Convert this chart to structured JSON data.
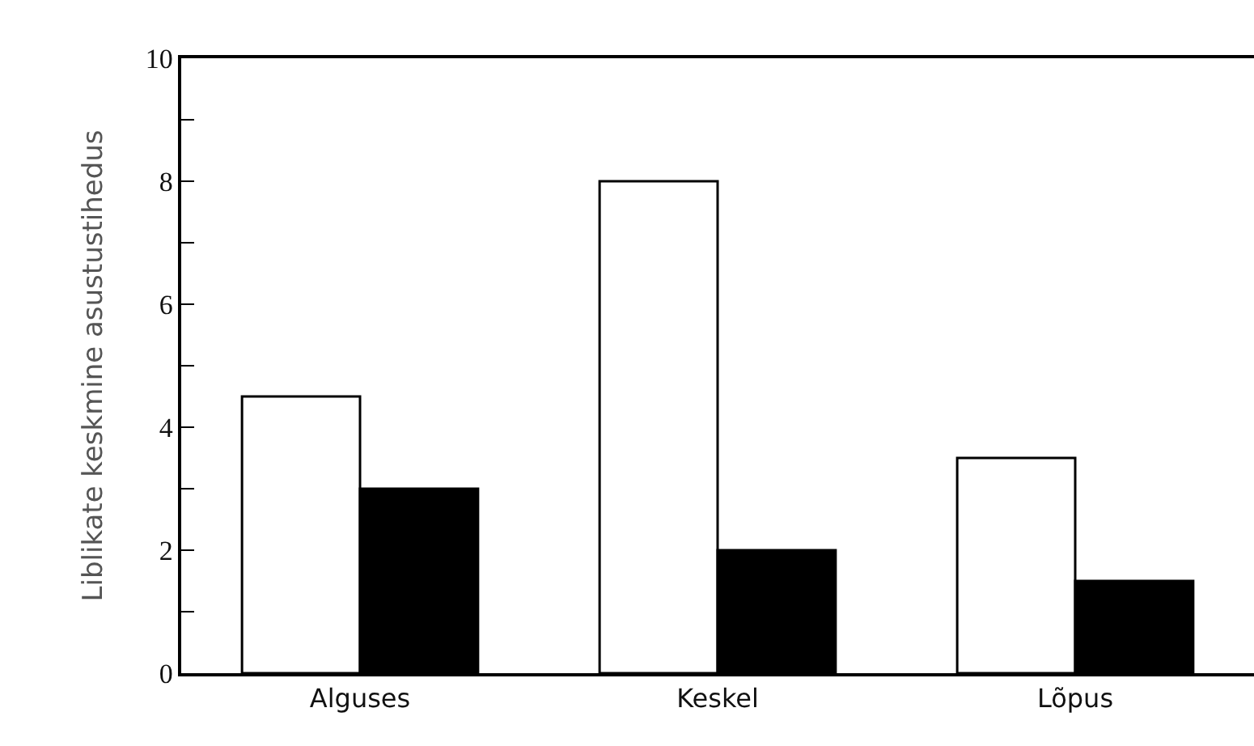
{
  "chart_data": {
    "type": "bar",
    "ylabel": "Liblikate keskmine asustustihedus",
    "categories": [
      "Alguses",
      "Keskel",
      "Lõpus"
    ],
    "series": [
      {
        "color": "#ffffff",
        "values": [
          4.5,
          8,
          3.5
        ]
      },
      {
        "color": "#000000",
        "values": [
          3,
          2,
          1.5
        ]
      }
    ],
    "ylim": [
      0,
      10
    ],
    "yticks": [
      0,
      {
        "value": 1,
        "label": null
      },
      2,
      {
        "value": 3,
        "label": null
      },
      4,
      {
        "value": 5,
        "label": null
      },
      6,
      {
        "value": 7,
        "label": null
      },
      8,
      {
        "value": 9,
        "label": null
      },
      10
    ]
  }
}
